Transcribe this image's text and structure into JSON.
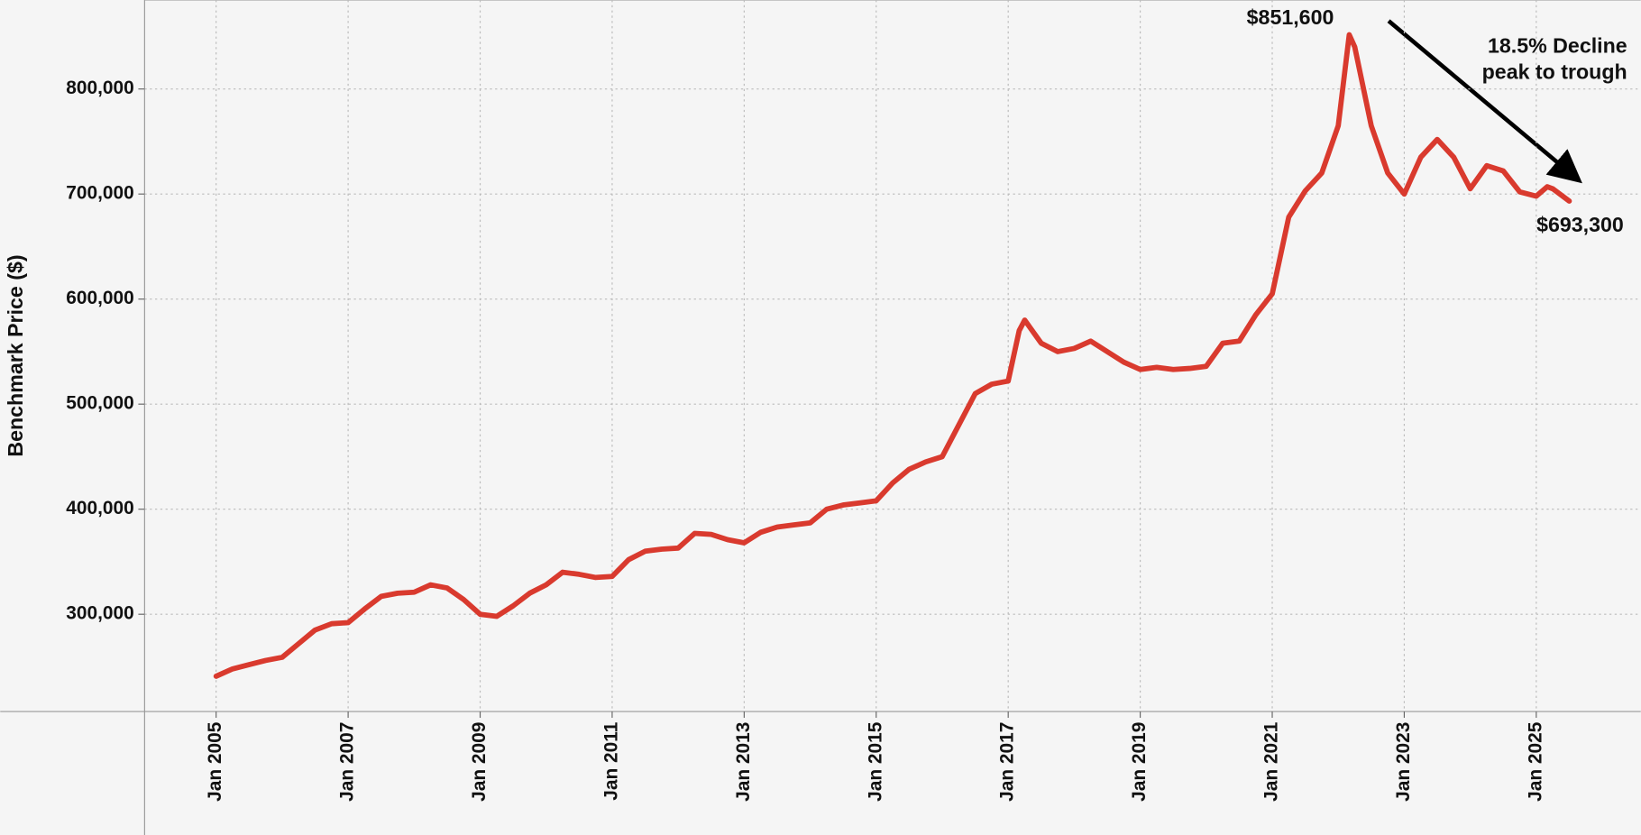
{
  "chart_data": {
    "type": "line",
    "y_label": "Benchmark Price ($)",
    "x": [
      "2005-01",
      "2005-04",
      "2005-07",
      "2005-10",
      "2006-01",
      "2006-04",
      "2006-07",
      "2006-10",
      "2007-01",
      "2007-04",
      "2007-07",
      "2007-10",
      "2008-01",
      "2008-04",
      "2008-07",
      "2008-10",
      "2009-01",
      "2009-04",
      "2009-07",
      "2009-10",
      "2010-01",
      "2010-04",
      "2010-07",
      "2010-10",
      "2011-01",
      "2011-04",
      "2011-07",
      "2011-10",
      "2012-01",
      "2012-04",
      "2012-07",
      "2012-10",
      "2013-01",
      "2013-04",
      "2013-07",
      "2013-10",
      "2014-01",
      "2014-04",
      "2014-07",
      "2014-10",
      "2015-01",
      "2015-04",
      "2015-07",
      "2015-10",
      "2016-01",
      "2016-04",
      "2016-07",
      "2016-10",
      "2017-01",
      "2017-03",
      "2017-04",
      "2017-07",
      "2017-10",
      "2018-01",
      "2018-04",
      "2018-07",
      "2018-10",
      "2019-01",
      "2019-04",
      "2019-07",
      "2019-10",
      "2020-01",
      "2020-04",
      "2020-07",
      "2020-10",
      "2021-01",
      "2021-04",
      "2021-07",
      "2021-10",
      "2022-01",
      "2022-03",
      "2022-04",
      "2022-07",
      "2022-10",
      "2023-01",
      "2023-04",
      "2023-07",
      "2023-10",
      "2024-01",
      "2024-04",
      "2024-07",
      "2024-10",
      "2025-01",
      "2025-03",
      "2025-04",
      "2025-07"
    ],
    "series": [
      {
        "name": "Benchmark Price",
        "color": "#d93a2e",
        "values": [
          241000,
          248000,
          252000,
          256000,
          259000,
          272000,
          285000,
          291000,
          292000,
          305000,
          317000,
          320000,
          321000,
          328000,
          325000,
          314000,
          300000,
          298000,
          308000,
          320000,
          328000,
          340000,
          338000,
          335000,
          336000,
          352000,
          360000,
          362000,
          363000,
          377000,
          376000,
          371000,
          368000,
          378000,
          383000,
          385000,
          387000,
          400000,
          404000,
          406000,
          408000,
          425000,
          438000,
          445000,
          450000,
          480000,
          510000,
          519000,
          522000,
          570000,
          580000,
          558000,
          550000,
          553000,
          560000,
          550000,
          540000,
          533000,
          535000,
          533000,
          534000,
          536000,
          558000,
          560000,
          585000,
          605000,
          678000,
          703000,
          720000,
          765000,
          851600,
          840000,
          765000,
          720000,
          700000,
          735000,
          752000,
          735000,
          705000,
          727000,
          722000,
          702000,
          698000,
          707000,
          705000,
          693300
        ]
      }
    ],
    "xlim": [
      "2003-12",
      "2026-08"
    ],
    "ylim": [
      207400,
      884700
    ],
    "xticks": [
      {
        "value": "2005-01",
        "label": "Jan 2005"
      },
      {
        "value": "2007-01",
        "label": "Jan 2007"
      },
      {
        "value": "2009-01",
        "label": "Jan 2009"
      },
      {
        "value": "2011-01",
        "label": "Jan 2011"
      },
      {
        "value": "2013-01",
        "label": "Jan 2013"
      },
      {
        "value": "2015-01",
        "label": "Jan 2015"
      },
      {
        "value": "2017-01",
        "label": "Jan 2017"
      },
      {
        "value": "2019-01",
        "label": "Jan 2019"
      },
      {
        "value": "2021-01",
        "label": "Jan 2021"
      },
      {
        "value": "2023-01",
        "label": "Jan 2023"
      },
      {
        "value": "2025-01",
        "label": "Jan 2025"
      }
    ],
    "yticks": [
      {
        "value": 300000,
        "label": "300,000"
      },
      {
        "value": 400000,
        "label": "400,000"
      },
      {
        "value": 500000,
        "label": "500,000"
      },
      {
        "value": 600000,
        "label": "600,000"
      },
      {
        "value": 700000,
        "label": "700,000"
      },
      {
        "value": 800000,
        "label": "800,000"
      }
    ],
    "grid": true,
    "annotations": [
      "$851,600",
      "$693,300",
      "18.5%  Decline",
      "peak to trough"
    ]
  }
}
